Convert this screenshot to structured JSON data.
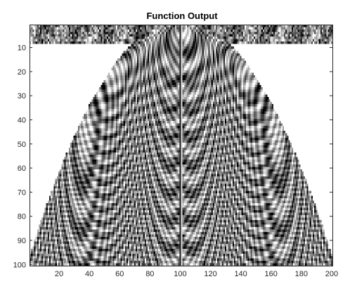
{
  "chart_data": {
    "type": "heatmap",
    "title": "Function Output",
    "xlabel": "",
    "ylabel": "",
    "xlim": [
      0.5,
      200.5
    ],
    "ylim": [
      100.5,
      0.5
    ],
    "y_direction": "reversed",
    "x_ticks": [
      20,
      40,
      60,
      80,
      100,
      120,
      140,
      160,
      180,
      200
    ],
    "y_ticks": [
      10,
      20,
      30,
      40,
      50,
      60,
      70,
      80,
      90,
      100
    ],
    "grid": false,
    "colormap": "gray",
    "colorbar": false,
    "grid_size": {
      "rows": 100,
      "cols": 200
    },
    "description_of_values": "grayscale oscillating pattern filling a parabolic region; cells outside the parabola are white"
  }
}
